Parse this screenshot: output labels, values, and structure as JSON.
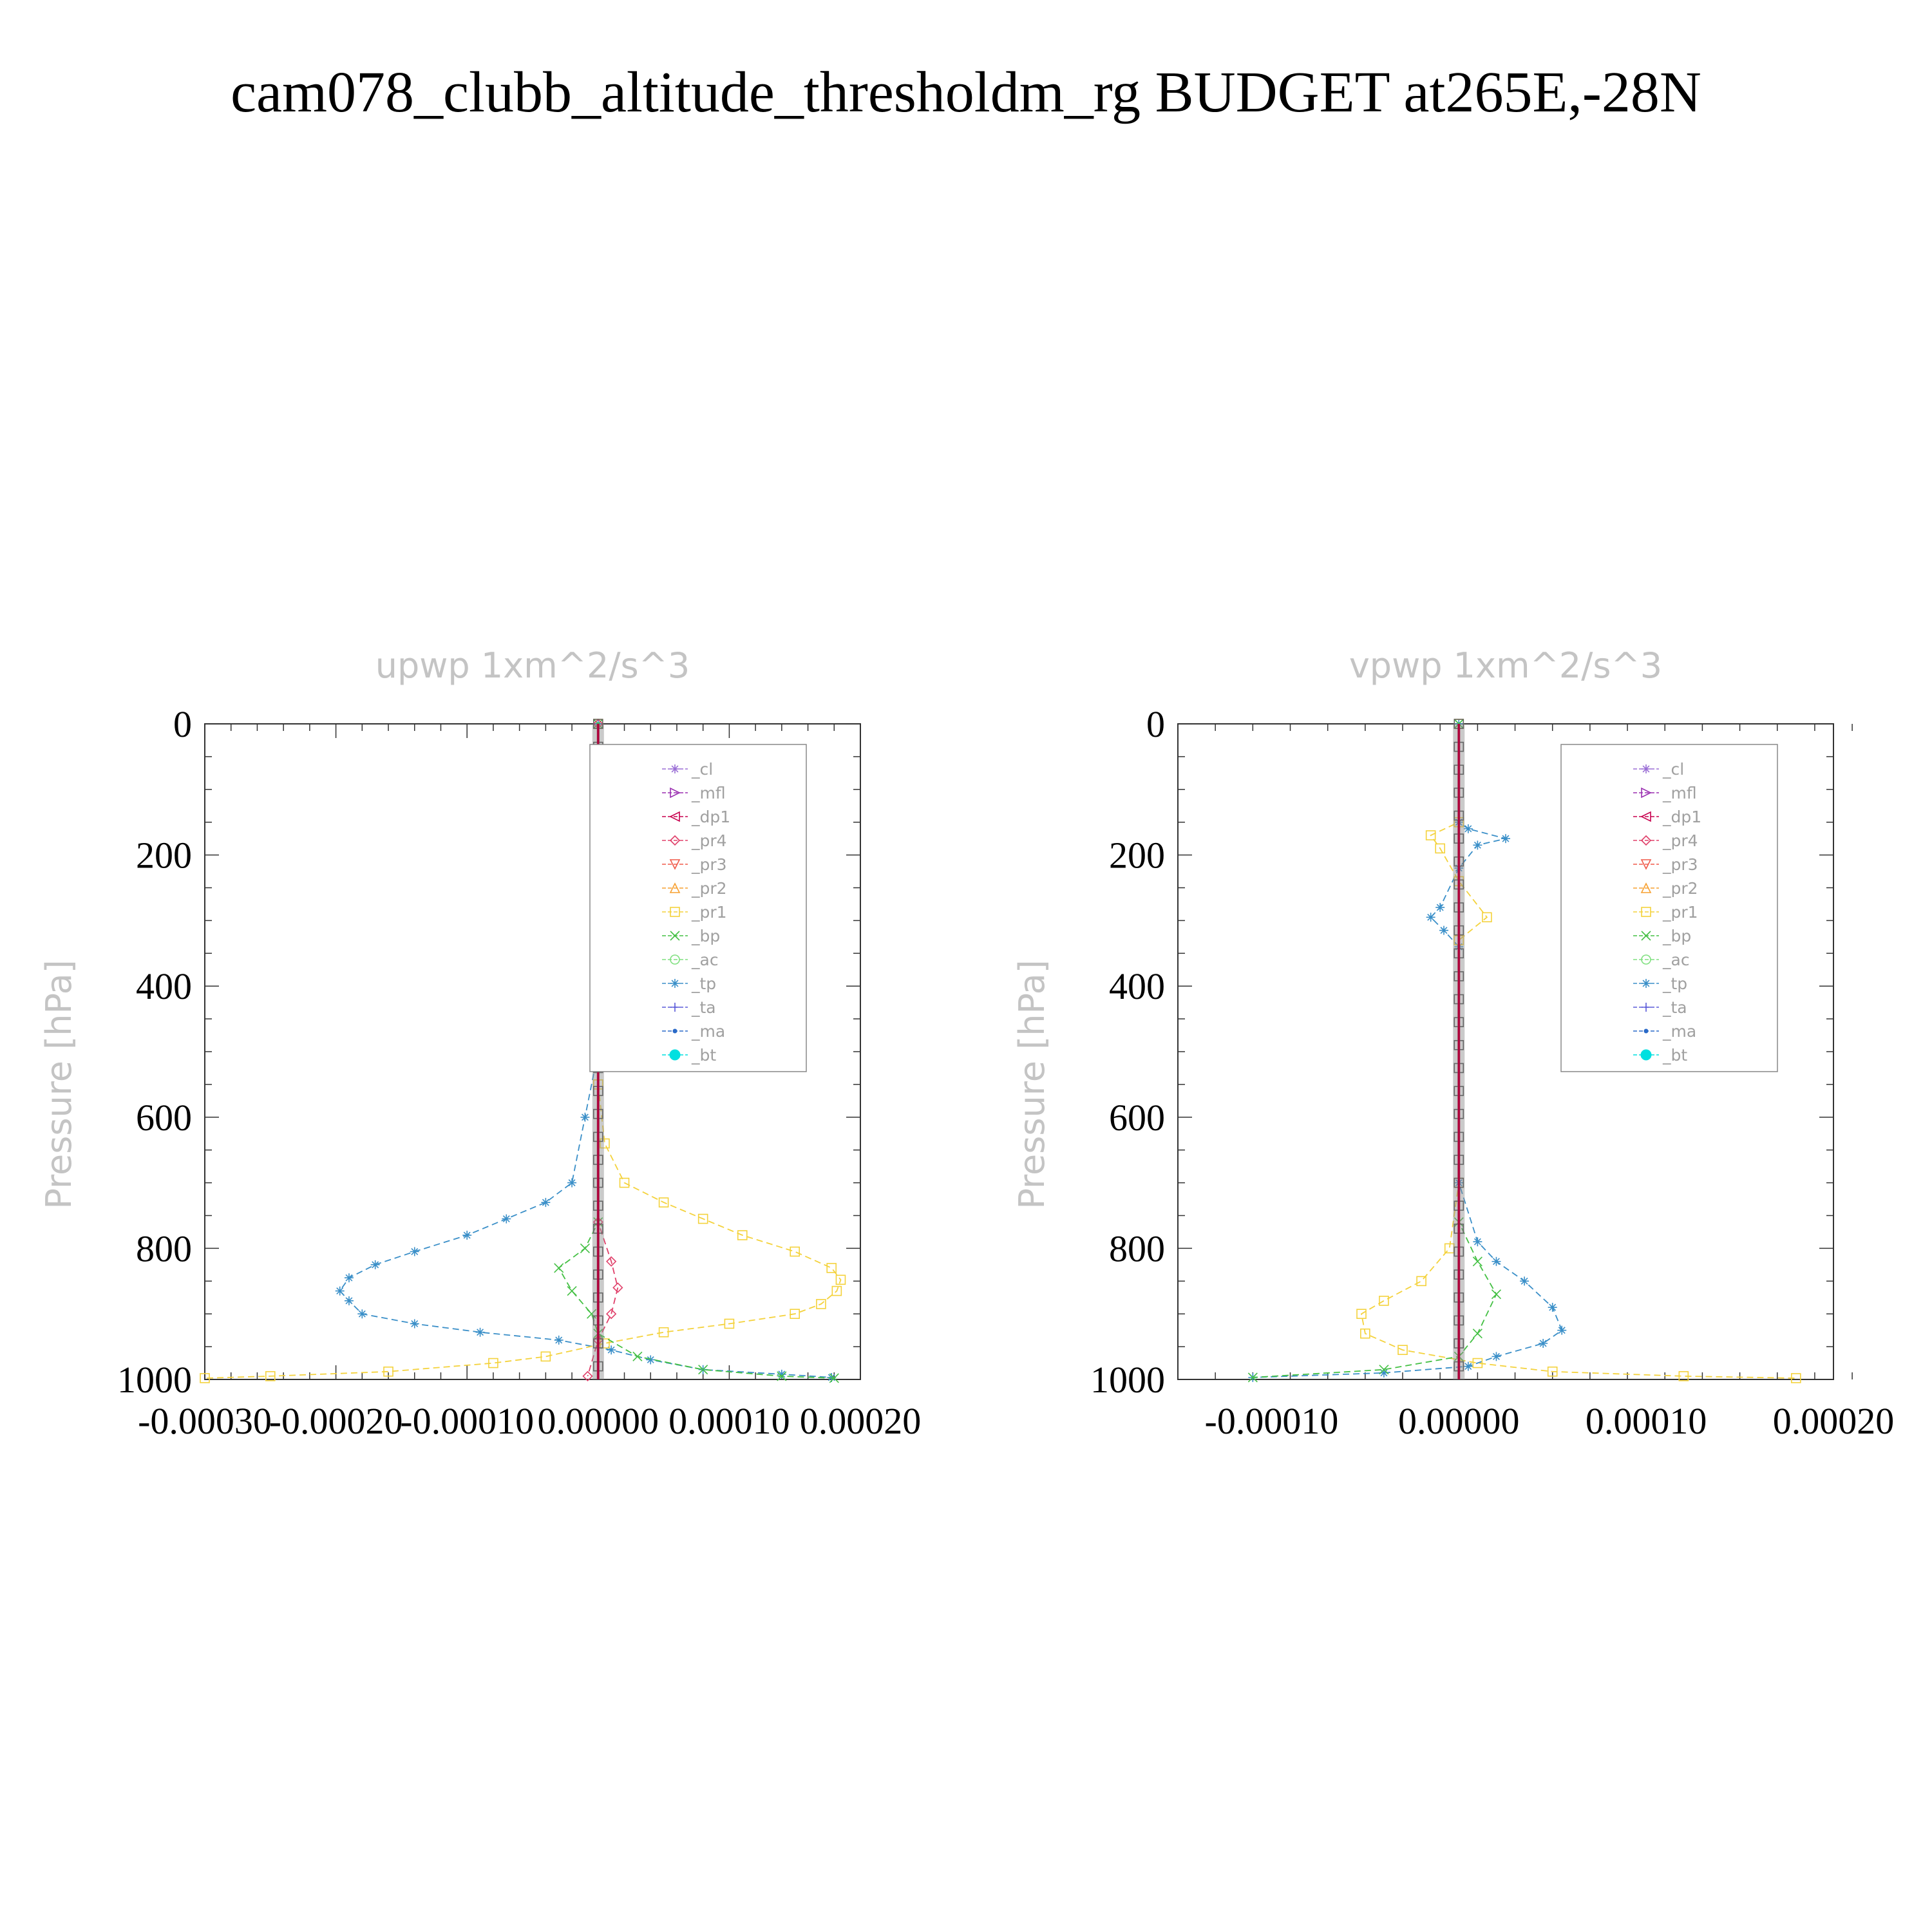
{
  "title": "cam078_clubb_altitude_thresholdm_rg  BUDGET at265E,-28N",
  "legend": [
    {
      "name": "_cl",
      "color": "#9b6fd6",
      "marker": "star"
    },
    {
      "name": "_mfl",
      "color": "#9a2fb0",
      "marker": "tri-right"
    },
    {
      "name": "_dp1",
      "color": "#c8004e",
      "marker": "tri-left"
    },
    {
      "name": "_pr4",
      "color": "#e0406a",
      "marker": "diamond"
    },
    {
      "name": "_pr3",
      "color": "#f05a4a",
      "marker": "tri-down"
    },
    {
      "name": "_pr2",
      "color": "#f7a030",
      "marker": "tri-up"
    },
    {
      "name": "_pr1",
      "color": "#f4d23c",
      "marker": "square"
    },
    {
      "name": "_bp",
      "color": "#44c044",
      "marker": "x"
    },
    {
      "name": "_ac",
      "color": "#80e080",
      "marker": "circle"
    },
    {
      "name": "_tp",
      "color": "#3a8fc8",
      "marker": "asterisk"
    },
    {
      "name": "_ta",
      "color": "#5a5ad8",
      "marker": "plus"
    },
    {
      "name": "_ma",
      "color": "#2a6ac8",
      "marker": "dot"
    },
    {
      "name": "_bt",
      "color": "#00e0e0",
      "marker": "filled-circle"
    }
  ],
  "chart_data": [
    {
      "type": "line",
      "title": "upwp   1xm^2/s^3",
      "ylabel": "Pressure [hPa]",
      "xlim": [
        -0.0003,
        0.0002
      ],
      "ylim": [
        1000,
        0
      ],
      "xticks": [
        -0.0003,
        -0.0002,
        -0.0001,
        0.0,
        0.0001,
        0.0002
      ],
      "xtick_labels": [
        "-0.00030",
        "-0.00020",
        "-0.00010",
        "0.00000",
        "0.00010",
        "0.00020"
      ],
      "yticks": [
        0,
        200,
        400,
        600,
        800,
        1000
      ],
      "ytick_labels": [
        "0",
        "200",
        "400",
        "600",
        "800",
        "1000"
      ],
      "legend_position": "top-right",
      "series": [
        {
          "name": "_tp",
          "points": [
            [
              0,
              0
            ],
            [
              0,
              500
            ],
            [
              -1e-05,
              600
            ],
            [
              -2e-05,
              700
            ],
            [
              -4e-05,
              730
            ],
            [
              -7e-05,
              755
            ],
            [
              -0.0001,
              780
            ],
            [
              -0.00014,
              805
            ],
            [
              -0.00017,
              825
            ],
            [
              -0.00019,
              845
            ],
            [
              -0.000197,
              865
            ],
            [
              -0.00019,
              880
            ],
            [
              -0.00018,
              900
            ],
            [
              -0.00014,
              915
            ],
            [
              -9e-05,
              928
            ],
            [
              -3e-05,
              940
            ],
            [
              1e-05,
              955
            ],
            [
              4e-05,
              970
            ],
            [
              8e-05,
              985
            ],
            [
              0.00014,
              992
            ],
            [
              0.000178,
              997
            ]
          ]
        },
        {
          "name": "_pr1",
          "points": [
            [
              0,
              0
            ],
            [
              0,
              550
            ],
            [
              5e-06,
              640
            ],
            [
              2e-05,
              700
            ],
            [
              5e-05,
              730
            ],
            [
              8e-05,
              755
            ],
            [
              0.00011,
              780
            ],
            [
              0.00015,
              805
            ],
            [
              0.000178,
              830
            ],
            [
              0.000185,
              848
            ],
            [
              0.000182,
              865
            ],
            [
              0.00017,
              885
            ],
            [
              0.00015,
              900
            ],
            [
              0.0001,
              915
            ],
            [
              5e-05,
              928
            ],
            [
              5e-06,
              945
            ],
            [
              -4e-05,
              965
            ],
            [
              -8e-05,
              975
            ],
            [
              -0.00016,
              988
            ],
            [
              -0.00025,
              995
            ],
            [
              -0.0003,
              998
            ]
          ]
        },
        {
          "name": "_bp",
          "points": [
            [
              0,
              0
            ],
            [
              0,
              760
            ],
            [
              -1e-05,
              800
            ],
            [
              -3e-05,
              830
            ],
            [
              -2e-05,
              865
            ],
            [
              -5e-06,
              900
            ],
            [
              0.0,
              930
            ],
            [
              3e-05,
              965
            ],
            [
              8e-05,
              985
            ],
            [
              0.00014,
              995
            ],
            [
              0.00018,
              998
            ]
          ]
        },
        {
          "name": "_pr4",
          "points": [
            [
              0,
              0
            ],
            [
              0,
              760
            ],
            [
              1e-05,
              820
            ],
            [
              1.5e-05,
              860
            ],
            [
              1e-05,
              900
            ],
            [
              0.0,
              940
            ],
            [
              -8e-06,
              995
            ]
          ]
        },
        {
          "name": "_dp1",
          "points": [
            [
              0,
              0
            ],
            [
              0,
              1000
            ]
          ]
        }
      ]
    },
    {
      "type": "line",
      "title": "vpwp   1xm^2/s^3",
      "ylabel": "Pressure [hPa]",
      "xlim": [
        -0.00015,
        0.0002
      ],
      "ylim": [
        1000,
        0
      ],
      "xticks": [
        -0.0001,
        0.0,
        0.0001,
        0.0002
      ],
      "xtick_labels": [
        "-0.00010",
        "0.00000",
        "0.00010",
        "0.00020"
      ],
      "yticks": [
        0,
        200,
        400,
        600,
        800,
        1000
      ],
      "ytick_labels": [
        "0",
        "200",
        "400",
        "600",
        "800",
        "1000"
      ],
      "legend_position": "top-right",
      "series": [
        {
          "name": "_tp",
          "points": [
            [
              0,
              0
            ],
            [
              0,
              150
            ],
            [
              5e-06,
              160
            ],
            [
              2.5e-05,
              175
            ],
            [
              1e-05,
              185
            ],
            [
              0,
              220
            ],
            [
              -1e-05,
              280
            ],
            [
              -1.5e-05,
              295
            ],
            [
              -8e-06,
              315
            ],
            [
              0,
              340
            ],
            [
              0,
              700
            ],
            [
              1e-05,
              790
            ],
            [
              2e-05,
              820
            ],
            [
              3.5e-05,
              850
            ],
            [
              5e-05,
              890
            ],
            [
              5.5e-05,
              925
            ],
            [
              4.5e-05,
              945
            ],
            [
              2e-05,
              965
            ],
            [
              5e-06,
              980
            ],
            [
              -4e-05,
              990
            ],
            [
              -0.00011,
              997
            ]
          ]
        },
        {
          "name": "_pr1",
          "points": [
            [
              0,
              0
            ],
            [
              0,
              150
            ],
            [
              -1.5e-05,
              170
            ],
            [
              -1e-05,
              190
            ],
            [
              0.0,
              240
            ],
            [
              1.5e-05,
              295
            ],
            [
              0,
              330
            ],
            [
              0,
              700
            ],
            [
              -5e-06,
              800
            ],
            [
              -2e-05,
              850
            ],
            [
              -4e-05,
              880
            ],
            [
              -5.2e-05,
              900
            ],
            [
              -5e-05,
              930
            ],
            [
              -3e-05,
              955
            ],
            [
              1e-05,
              975
            ],
            [
              5e-05,
              988
            ],
            [
              0.00012,
              995
            ],
            [
              0.00018,
              998
            ]
          ]
        },
        {
          "name": "_bp",
          "points": [
            [
              0,
              0
            ],
            [
              0,
              760
            ],
            [
              1e-05,
              820
            ],
            [
              2e-05,
              870
            ],
            [
              1e-05,
              930
            ],
            [
              0.0,
              965
            ],
            [
              -4e-05,
              985
            ],
            [
              -0.00011,
              997
            ]
          ]
        },
        {
          "name": "_dp1",
          "points": [
            [
              0,
              0
            ],
            [
              0,
              1000
            ]
          ]
        }
      ]
    }
  ]
}
